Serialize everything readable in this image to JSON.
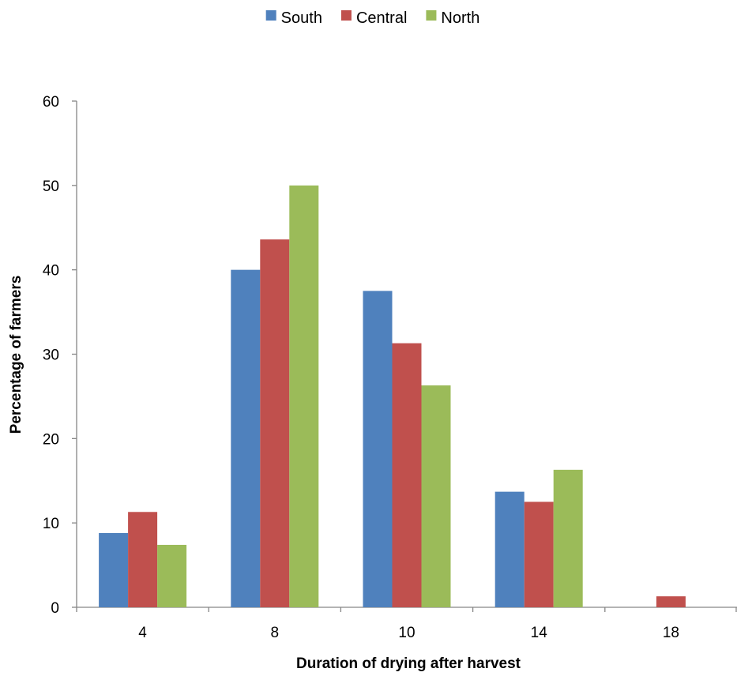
{
  "chart_data": {
    "type": "bar",
    "title": "",
    "xlabel": "Duration of drying after harvest",
    "ylabel": "Percentage of farmers",
    "categories": [
      "4",
      "8",
      "10",
      "14",
      "18"
    ],
    "series": [
      {
        "name": "South",
        "color": "#4f81bd",
        "values": [
          8.8,
          40,
          37.5,
          13.7,
          0
        ]
      },
      {
        "name": "Central",
        "color": "#c0504d",
        "values": [
          11.3,
          43.6,
          31.3,
          12.5,
          1.3
        ]
      },
      {
        "name": "North",
        "color": "#9bbb59",
        "values": [
          7.4,
          50,
          26.3,
          16.3,
          0
        ]
      }
    ],
    "ylim": [
      0,
      60
    ],
    "yticks": [
      0,
      10,
      20,
      30,
      40,
      50,
      60
    ],
    "grid": false,
    "legend_position": "top"
  }
}
